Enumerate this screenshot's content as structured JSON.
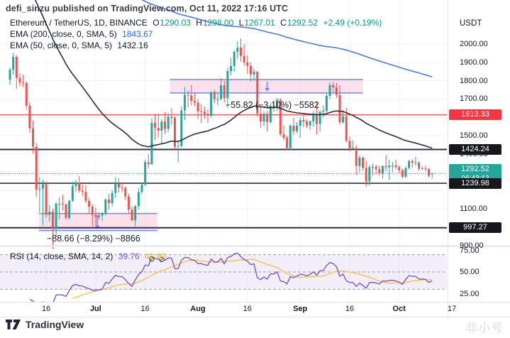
{
  "publisher_line": "defi_sinzu published on TradingView.com, Oct 11, 2022 17:16 UTC",
  "symbol_row": {
    "title": "Ethereum / TetherUS, 1D, BINANCE",
    "o_label": "O",
    "o": "1290.03",
    "h_label": "H",
    "h": "1298.00",
    "l_label": "L",
    "l": "1267.01",
    "c_label": "C",
    "c": "1292.52",
    "change": "+2.49 (+0.19%)"
  },
  "indicators": {
    "ema200": {
      "label": "EMA (200, close, 0, SMA, 5)",
      "value": "1843.67"
    },
    "ema50": {
      "label": "EMA (50, close, 0, SMA, 5)",
      "value": "1432.16"
    },
    "rsi": {
      "label": "RSI (14, close, SMA, 14, 2)",
      "value": "39.76",
      "ma_value": "41.80"
    }
  },
  "annotations": {
    "upper": "−55.82 (−3.10%) −5582",
    "lower": "−88.66 (−8.29%) −8866"
  },
  "price_axis": {
    "currency": "USDT",
    "labels": [
      {
        "text": "2000.00",
        "price": 2000
      },
      {
        "text": "1900.00",
        "price": 1900
      },
      {
        "text": "1800.00",
        "price": 1800
      },
      {
        "text": "1700.00",
        "price": 1700
      },
      {
        "text": "1500.00",
        "price": 1500
      },
      {
        "text": "1400.00",
        "price": 1400
      },
      {
        "text": "1100.00",
        "price": 1100
      },
      {
        "text": "900.00",
        "price": 900
      }
    ],
    "badges": [
      {
        "text": "1613.33",
        "price": 1613.33,
        "bg": "#f23645",
        "fg": "#ffffff"
      },
      {
        "text": "1424.24",
        "price": 1424.24,
        "bg": "#16181e",
        "fg": "#ffffff"
      },
      {
        "text": "1292.52",
        "sub": "06:43:12",
        "price": 1292.52,
        "bg": "#26a69a",
        "fg": "#ffffff"
      },
      {
        "text": "1239.98",
        "price": 1239.98,
        "bg": "#16181e",
        "fg": "#ffffff"
      },
      {
        "text": "997.27",
        "price": 997.27,
        "bg": "#16181e",
        "fg": "#ffffff"
      }
    ]
  },
  "rsi_axis": {
    "labels": [
      {
        "text": "75.00",
        "value": 75
      },
      {
        "text": "50.00",
        "value": 50
      },
      {
        "text": "25.00",
        "value": 25
      }
    ]
  },
  "x_axis": {
    "ticks": [
      {
        "label": "16",
        "i": 11,
        "bold": false
      },
      {
        "label": "Jul",
        "i": 26,
        "bold": true
      },
      {
        "label": "16",
        "i": 41,
        "bold": false
      },
      {
        "label": "Aug",
        "i": 57,
        "bold": true
      },
      {
        "label": "16",
        "i": 72,
        "bold": false
      },
      {
        "label": "Sep",
        "i": 88,
        "bold": true
      },
      {
        "label": "16",
        "i": 103,
        "bold": false
      },
      {
        "label": "Oct",
        "i": 118,
        "bold": true
      },
      {
        "label": "17",
        "i": 134,
        "bold": false
      }
    ]
  },
  "footer": {
    "brand": "TradingView",
    "watermark": "非小号"
  },
  "colors": {
    "up": "#26a69a",
    "down": "#ef5350",
    "ema50": "#2a2e39",
    "ema200": "#4f7bd0",
    "rsi": "#7e57c2",
    "rsi_ma": "#f0c86a",
    "resistance": "#f23645",
    "level": "#2f3241",
    "zone_fill": "#f8bbd0",
    "zone_border": "#7387f0",
    "current": "#26a69a",
    "grid": "#f0f3fa"
  },
  "chart_data": {
    "type": "candlestick",
    "symbol": "Ethereum / TetherUS",
    "interval": "1D",
    "exchange": "BINANCE",
    "start_date": "2022-06-05",
    "ylim": [
      900,
      2050
    ],
    "rsi_ylim": [
      0,
      100
    ],
    "current_price": 1292.52,
    "countdown": "06:43:12",
    "candles": [
      [
        1805,
        1870,
        1778,
        1860
      ],
      [
        1860,
        1952,
        1832,
        1930
      ],
      [
        1930,
        1940,
        1755,
        1815
      ],
      [
        1815,
        1838,
        1770,
        1790
      ],
      [
        1790,
        1832,
        1765,
        1788
      ],
      [
        1788,
        1795,
        1640,
        1663
      ],
      [
        1663,
        1680,
        1515,
        1540
      ],
      [
        1540,
        1583,
        1402,
        1440
      ],
      [
        1440,
        1460,
        1165,
        1205
      ],
      [
        1205,
        1275,
        1082,
        1210
      ],
      [
        1210,
        1260,
        1010,
        1235
      ],
      [
        1235,
        1250,
        1051,
        1068
      ],
      [
        1068,
        1122,
        1031,
        1085
      ],
      [
        1085,
        1100,
        881,
        995
      ],
      [
        995,
        1138,
        950,
        1128
      ],
      [
        1128,
        1162,
        1042,
        1128
      ],
      [
        1128,
        1177,
        1090,
        1125
      ],
      [
        1125,
        1130,
        1042,
        1051
      ],
      [
        1051,
        1149,
        1043,
        1144
      ],
      [
        1144,
        1248,
        1140,
        1224
      ],
      [
        1224,
        1258,
        1195,
        1243
      ],
      [
        1243,
        1280,
        1188,
        1200
      ],
      [
        1200,
        1233,
        1168,
        1193
      ],
      [
        1193,
        1230,
        1132,
        1144
      ],
      [
        1144,
        1162,
        1075,
        1112
      ],
      [
        1112,
        1125,
        1006,
        1067
      ],
      [
        1067,
        1107,
        1010,
        1056
      ],
      [
        1056,
        1082,
        1040,
        1064
      ],
      [
        1064,
        1082,
        1035,
        1074
      ],
      [
        1074,
        1158,
        1064,
        1151
      ],
      [
        1151,
        1182,
        1096,
        1132
      ],
      [
        1132,
        1202,
        1115,
        1187
      ],
      [
        1187,
        1274,
        1160,
        1237
      ],
      [
        1237,
        1268,
        1190,
        1217
      ],
      [
        1217,
        1240,
        1192,
        1216
      ],
      [
        1216,
        1222,
        1148,
        1168
      ],
      [
        1168,
        1184,
        1075,
        1096
      ],
      [
        1096,
        1112,
        1032,
        1038
      ],
      [
        1038,
        1120,
        1005,
        1115
      ],
      [
        1115,
        1215,
        1095,
        1192
      ],
      [
        1192,
        1240,
        1180,
        1233
      ],
      [
        1233,
        1370,
        1225,
        1355
      ],
      [
        1355,
        1398,
        1320,
        1344
      ],
      [
        1344,
        1595,
        1340,
        1570
      ],
      [
        1570,
        1620,
        1475,
        1542
      ],
      [
        1542,
        1620,
        1490,
        1527
      ],
      [
        1527,
        1590,
        1452,
        1576
      ],
      [
        1576,
        1629,
        1510,
        1537
      ],
      [
        1537,
        1622,
        1520,
        1603
      ],
      [
        1603,
        1650,
        1560,
        1597
      ],
      [
        1597,
        1605,
        1424,
        1440
      ],
      [
        1440,
        1470,
        1355,
        1444
      ],
      [
        1444,
        1660,
        1435,
        1638
      ],
      [
        1638,
        1765,
        1585,
        1723
      ],
      [
        1723,
        1745,
        1655,
        1720
      ],
      [
        1720,
        1775,
        1665,
        1690
      ],
      [
        1690,
        1735,
        1660,
        1680
      ],
      [
        1680,
        1700,
        1590,
        1632
      ],
      [
        1632,
        1672,
        1568,
        1632
      ],
      [
        1632,
        1658,
        1592,
        1618
      ],
      [
        1618,
        1644,
        1570,
        1609
      ],
      [
        1609,
        1742,
        1600,
        1737
      ],
      [
        1737,
        1748,
        1678,
        1699
      ],
      [
        1699,
        1732,
        1665,
        1700
      ],
      [
        1700,
        1815,
        1692,
        1774
      ],
      [
        1774,
        1800,
        1680,
        1705
      ],
      [
        1705,
        1870,
        1652,
        1852
      ],
      [
        1852,
        1925,
        1830,
        1880
      ],
      [
        1880,
        1965,
        1849,
        1958
      ],
      [
        1958,
        2015,
        1920,
        1980
      ],
      [
        1980,
        2030,
        1905,
        1936
      ],
      [
        1936,
        2000,
        1882,
        1900
      ],
      [
        1900,
        1938,
        1836,
        1880
      ],
      [
        1880,
        1900,
        1795,
        1834
      ],
      [
        1834,
        1863,
        1800,
        1849
      ],
      [
        1849,
        1852,
        1605,
        1620
      ],
      [
        1620,
        1660,
        1543,
        1577
      ],
      [
        1577,
        1632,
        1552,
        1619
      ],
      [
        1619,
        1635,
        1522,
        1574
      ],
      [
        1574,
        1678,
        1565,
        1663
      ],
      [
        1663,
        1692,
        1630,
        1657
      ],
      [
        1657,
        1705,
        1636,
        1696
      ],
      [
        1696,
        1706,
        1495,
        1508
      ],
      [
        1508,
        1555,
        1475,
        1488
      ],
      [
        1488,
        1500,
        1421,
        1432
      ],
      [
        1432,
        1562,
        1424,
        1554
      ],
      [
        1554,
        1596,
        1503,
        1524
      ],
      [
        1524,
        1572,
        1513,
        1554
      ],
      [
        1554,
        1600,
        1488,
        1585
      ],
      [
        1585,
        1608,
        1546,
        1577
      ],
      [
        1577,
        1588,
        1542,
        1556
      ],
      [
        1556,
        1584,
        1532,
        1578
      ],
      [
        1578,
        1635,
        1548,
        1617
      ],
      [
        1617,
        1680,
        1505,
        1563
      ],
      [
        1563,
        1640,
        1522,
        1629
      ],
      [
        1629,
        1665,
        1598,
        1635
      ],
      [
        1635,
        1730,
        1625,
        1717
      ],
      [
        1717,
        1790,
        1700,
        1776
      ],
      [
        1776,
        1793,
        1730,
        1763
      ],
      [
        1763,
        1789,
        1706,
        1722
      ],
      [
        1722,
        1775,
        1560,
        1573
      ],
      [
        1573,
        1640,
        1565,
        1605
      ],
      [
        1605,
        1653,
        1463,
        1472
      ],
      [
        1472,
        1495,
        1415,
        1430
      ],
      [
        1430,
        1474,
        1420,
        1432
      ],
      [
        1432,
        1448,
        1285,
        1335
      ],
      [
        1335,
        1392,
        1300,
        1380
      ],
      [
        1380,
        1385,
        1308,
        1324
      ],
      [
        1324,
        1363,
        1221,
        1250
      ],
      [
        1250,
        1340,
        1228,
        1328
      ],
      [
        1328,
        1348,
        1283,
        1330
      ],
      [
        1330,
        1340,
        1290,
        1317
      ],
      [
        1317,
        1336,
        1282,
        1295
      ],
      [
        1295,
        1337,
        1265,
        1333
      ],
      [
        1333,
        1394,
        1305,
        1327
      ],
      [
        1327,
        1368,
        1258,
        1337
      ],
      [
        1337,
        1357,
        1300,
        1338
      ],
      [
        1338,
        1368,
        1315,
        1328
      ],
      [
        1328,
        1338,
        1295,
        1311
      ],
      [
        1311,
        1320,
        1267,
        1276
      ],
      [
        1276,
        1332,
        1268,
        1323
      ],
      [
        1323,
        1367,
        1317,
        1362
      ],
      [
        1362,
        1370,
        1327,
        1352
      ],
      [
        1352,
        1384,
        1335,
        1352
      ],
      [
        1352,
        1360,
        1310,
        1320
      ],
      [
        1320,
        1333,
        1313,
        1321
      ],
      [
        1321,
        1336,
        1305,
        1317
      ],
      [
        1317,
        1322,
        1273,
        1282
      ],
      [
        1290.03,
        1298,
        1267.01,
        1292.52
      ]
    ],
    "hlines": [
      {
        "price": 1613.33,
        "color": "#f23645",
        "width": 1.3
      },
      {
        "price": 1424.24,
        "color": "#2f3241",
        "width": 2
      },
      {
        "price": 1239.98,
        "color": "#2f3241",
        "width": 1.6
      },
      {
        "price": 997.27,
        "color": "#2f3241",
        "width": 2
      }
    ],
    "zones": [
      {
        "from_i": 48.5,
        "to_i": 107,
        "top": 1806,
        "bottom": 1733,
        "arrow_i": 78
      },
      {
        "from_i": 8.8,
        "to_i": 44.7,
        "top": 1075,
        "bottom": 982,
        "arrow_i": 26.5
      }
    ],
    "rsi_levels": [
      70,
      50,
      30
    ],
    "rsi_markers": [
      {
        "i": 43,
        "value": 65
      },
      {
        "i": 46,
        "value": 64.5
      }
    ]
  }
}
